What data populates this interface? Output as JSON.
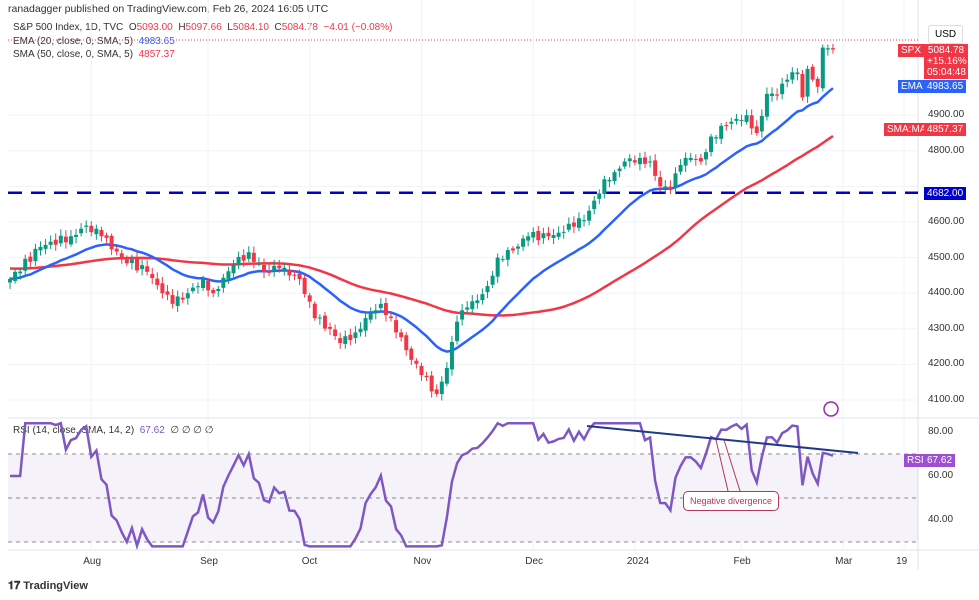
{
  "header": "ranadagger published on TradingView.com, Feb 26, 2024 16:05 UTC",
  "legend": {
    "symbol": "S&P 500 Index, 1D, TVC",
    "o_label": "O",
    "o": "5093.00",
    "h_label": "H",
    "h": "5097.66",
    "l_label": "L",
    "l": "5084.10",
    "c_label": "C",
    "c": "5084.78",
    "change": "−4.01 (−0.08%)",
    "ema": "EMA (20, close, 0, SMA, 5)",
    "ema_val": "4983.65",
    "sma": "SMA (50, close, 0, SMA, 5)",
    "sma_val": "4857.37",
    "rsi": "RSI (14, close, SMA, 14, 2)",
    "rsi_val": "67.62",
    "rsi_extra": "∅ ∅ ∅ ∅"
  },
  "currency": "USD",
  "tags": {
    "spx": "SPX",
    "spx_price": "5084.78",
    "spx_pct": "+15.16%",
    "spx_timer": "05:04:48",
    "ema": "EMA",
    "ema_val": "4983.65",
    "sma": "SMA:MA",
    "sma_val": "4857.37",
    "level": "4682.00",
    "rsi": "RSI",
    "rsi_val": "67.62"
  },
  "annotation": "Negative divergence",
  "brand": "TradingView",
  "colors": {
    "up": "#089981",
    "down": "#f23645",
    "ema": "#2962ff",
    "sma": "#f23645",
    "rsi": "#7e57c2",
    "level": "#0000cc"
  },
  "chart_data": {
    "type": "candlestick",
    "title": "S&P 500 Index, 1D",
    "price_ticks": [
      4100,
      4200,
      4300,
      4400,
      4500,
      4600,
      4700,
      4800,
      4900
    ],
    "price_tick_labels": [
      "4100.00",
      "4200.00",
      "4300.00",
      "4400.00",
      "4500.00",
      "4600.00",
      "4700.00",
      "4800.00",
      "4900.00"
    ],
    "rsi_ticks": [
      "40.00",
      "60.00",
      "80.00"
    ],
    "x_ticks": [
      {
        "label": "Aug",
        "idx": 16
      },
      {
        "label": "Sep",
        "idx": 39
      },
      {
        "label": "Oct",
        "idx": 59
      },
      {
        "label": "Nov",
        "idx": 81
      },
      {
        "label": "Dec",
        "idx": 103
      },
      {
        "label": "2024",
        "idx": 123
      },
      {
        "label": "Feb",
        "idx": 144
      },
      {
        "label": "Mar",
        "idx": 164
      },
      {
        "label": "19",
        "idx": 176
      }
    ],
    "horizontal_level": 4682,
    "close_anchors": [
      [
        0,
        4440
      ],
      [
        6,
        4530
      ],
      [
        12,
        4560
      ],
      [
        15,
        4590
      ],
      [
        18,
        4560
      ],
      [
        22,
        4500
      ],
      [
        27,
        4460
      ],
      [
        30,
        4400
      ],
      [
        32,
        4370
      ],
      [
        35,
        4400
      ],
      [
        38,
        4440
      ],
      [
        40,
        4400
      ],
      [
        44,
        4480
      ],
      [
        47,
        4515
      ],
      [
        50,
        4460
      ],
      [
        53,
        4470
      ],
      [
        55,
        4450
      ],
      [
        57,
        4440
      ],
      [
        60,
        4330
      ],
      [
        63,
        4300
      ],
      [
        65,
        4260
      ],
      [
        68,
        4290
      ],
      [
        70,
        4330
      ],
      [
        73,
        4370
      ],
      [
        75,
        4330
      ],
      [
        78,
        4240
      ],
      [
        81,
        4170
      ],
      [
        84,
        4117
      ],
      [
        86,
        4190
      ],
      [
        88,
        4320
      ],
      [
        90,
        4360
      ],
      [
        92,
        4380
      ],
      [
        94,
        4420
      ],
      [
        96,
        4500
      ],
      [
        99,
        4520
      ],
      [
        102,
        4560
      ],
      [
        106,
        4560
      ],
      [
        108,
        4570
      ],
      [
        110,
        4595
      ],
      [
        113,
        4605
      ],
      [
        115,
        4660
      ],
      [
        117,
        4720
      ],
      [
        119,
        4740
      ],
      [
        121,
        4770
      ],
      [
        124,
        4780
      ],
      [
        126,
        4770
      ],
      [
        128,
        4700
      ],
      [
        130,
        4690
      ],
      [
        132,
        4760
      ],
      [
        134,
        4780
      ],
      [
        136,
        4770
      ],
      [
        138,
        4840
      ],
      [
        141,
        4870
      ],
      [
        143,
        4890
      ],
      [
        145,
        4900
      ],
      [
        147,
        4850
      ],
      [
        149,
        4960
      ],
      [
        151,
        4955
      ],
      [
        153,
        5000
      ],
      [
        155,
        5020
      ],
      [
        156,
        4950
      ],
      [
        157,
        5030
      ],
      [
        158,
        5000
      ],
      [
        159,
        4980
      ],
      [
        160,
        5090
      ],
      [
        161,
        5088
      ],
      [
        162,
        5084.78
      ]
    ]
  }
}
